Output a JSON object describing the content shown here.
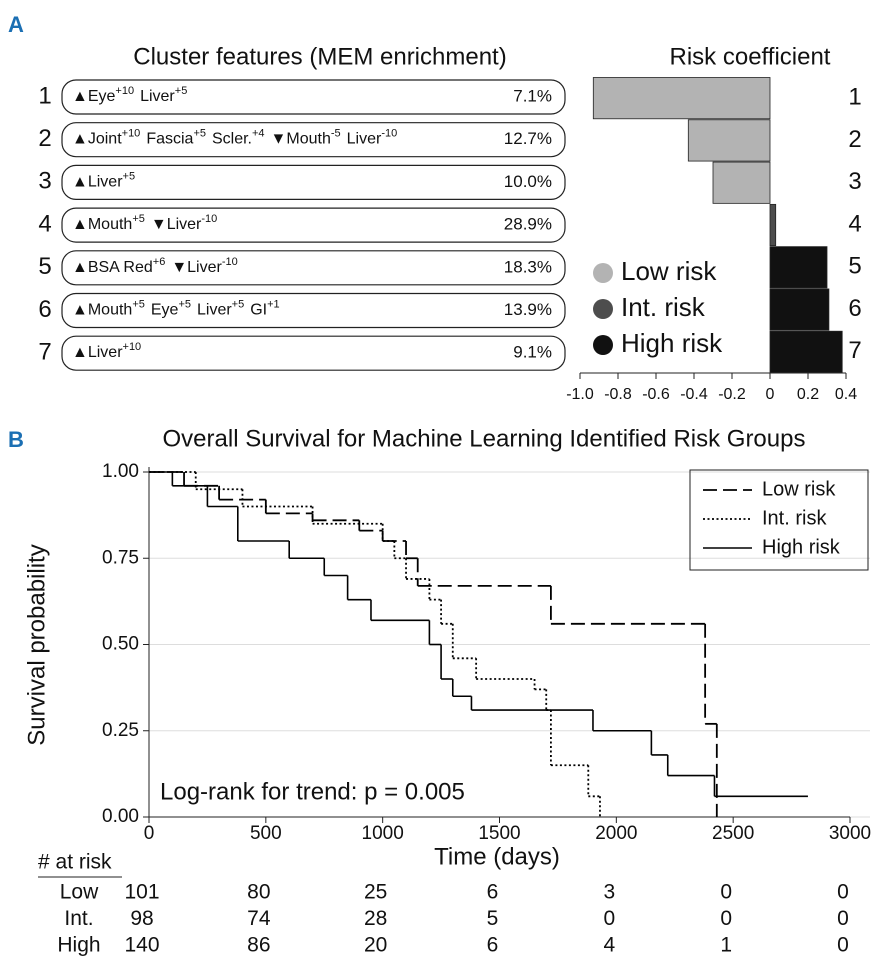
{
  "panels": {
    "a": "A",
    "b": "B"
  },
  "cluster_table": {
    "title": "Cluster features (MEM enrichment)",
    "rows": [
      {
        "number": "1",
        "features": [
          {
            "text": "▲Eye",
            "sup": "+10"
          },
          {
            "text": "Liver",
            "sup": "+5"
          }
        ],
        "percent": "7.1%"
      },
      {
        "number": "2",
        "features": [
          {
            "text": "▲Joint",
            "sup": "+10"
          },
          {
            "text": "Fascia",
            "sup": "+5"
          },
          {
            "text": "Scler.",
            "sup": "+4"
          },
          {
            "text": "▼Mouth",
            "sup": "-5"
          },
          {
            "text": "Liver",
            "sup": "-10"
          }
        ],
        "percent": "12.7%"
      },
      {
        "number": "3",
        "features": [
          {
            "text": "▲Liver",
            "sup": "+5"
          }
        ],
        "percent": "10.0%"
      },
      {
        "number": "4",
        "features": [
          {
            "text": "▲Mouth",
            "sup": "+5"
          },
          {
            "text": "▼Liver",
            "sup": "-10"
          }
        ],
        "percent": "28.9%"
      },
      {
        "number": "5",
        "features": [
          {
            "text": "▲BSA Red",
            "sup": "+6"
          },
          {
            "text": "▼Liver",
            "sup": "-10"
          }
        ],
        "percent": "18.3%"
      },
      {
        "number": "6",
        "features": [
          {
            "text": "▲Mouth",
            "sup": "+5"
          },
          {
            "text": "Eye",
            "sup": "+5"
          },
          {
            "text": "Liver",
            "sup": "+5"
          },
          {
            "text": "GI",
            "sup": "+1"
          }
        ],
        "percent": "13.9%"
      },
      {
        "number": "7",
        "features": [
          {
            "text": "▲Liver",
            "sup": "+10"
          }
        ],
        "percent": "9.1%"
      }
    ]
  },
  "chart_data": [
    {
      "type": "bar",
      "orientation": "horizontal",
      "title": "Risk coefficient",
      "categories": [
        "1",
        "2",
        "3",
        "4",
        "5",
        "6",
        "7"
      ],
      "values": [
        -0.93,
        -0.43,
        -0.3,
        0.03,
        0.3,
        0.31,
        0.38
      ],
      "colors": [
        "#b3b3b3",
        "#b3b3b3",
        "#b3b3b3",
        "#4d4d4d",
        "#111111",
        "#111111",
        "#111111"
      ],
      "xlim": [
        -1,
        0.4
      ],
      "xticks": [
        {
          "value": -1,
          "label": "-1.0"
        },
        -0.8,
        -0.6,
        -0.4,
        -0.2,
        0,
        0.2,
        0.4
      ],
      "legend": {
        "position": "lower left",
        "items": [
          {
            "name": "Low risk",
            "color": "#b3b3b3"
          },
          {
            "name": "Int. risk",
            "color": "#4d4d4d"
          },
          {
            "name": "High risk",
            "color": "#111111"
          }
        ]
      }
    },
    {
      "type": "line",
      "step": true,
      "title": "Overall Survival for Machine Learning Identified Risk Groups",
      "x_label": "Time (days)",
      "y_label": "Survival probability",
      "annotation": "Log-rank for trend: p = 0.005",
      "xlim": [
        0,
        3000
      ],
      "xticks": [
        0,
        500,
        1000,
        1500,
        2000,
        2500,
        3000
      ],
      "ylim": [
        0,
        1
      ],
      "yticks": [
        {
          "value": 0,
          "label": "0.00"
        },
        0.25,
        {
          "value": 0.5,
          "label": "0.50"
        },
        0.75,
        {
          "value": 1,
          "label": "1.00"
        }
      ],
      "grid": true,
      "legend": "upper right",
      "series": [
        {
          "name": "Low risk",
          "color": "#000000",
          "style": "dashed",
          "x": [
            0,
            150,
            300,
            500,
            700,
            900,
            1000,
            1100,
            1150,
            1720,
            2380,
            2430
          ],
          "values": [
            1.0,
            0.96,
            0.92,
            0.88,
            0.86,
            0.83,
            0.8,
            0.75,
            0.67,
            0.56,
            0.27,
            0
          ]
        },
        {
          "name": "Int. risk",
          "color": "#000000",
          "style": "dotted",
          "x": [
            0,
            200,
            400,
            700,
            1000,
            1050,
            1100,
            1200,
            1250,
            1300,
            1400,
            1650,
            1700,
            1720,
            1880,
            1930
          ],
          "values": [
            1.0,
            0.95,
            0.9,
            0.85,
            0.8,
            0.75,
            0.69,
            0.63,
            0.56,
            0.46,
            0.4,
            0.37,
            0.31,
            0.15,
            0.06,
            0
          ]
        },
        {
          "name": "High risk",
          "color": "#000000",
          "style": "solid",
          "x": [
            0,
            100,
            250,
            380,
            600,
            750,
            850,
            950,
            1200,
            1250,
            1300,
            1380,
            1900,
            2150,
            2220,
            2420,
            2820
          ],
          "values": [
            1.0,
            0.96,
            0.9,
            0.8,
            0.75,
            0.7,
            0.63,
            0.57,
            0.5,
            0.4,
            0.35,
            0.31,
            0.25,
            0.18,
            0.12,
            0.06,
            0.06
          ]
        }
      ]
    }
  ],
  "risk_table": {
    "title": "# at risk",
    "rows": [
      {
        "name": "Low",
        "counts": [
          101,
          80,
          25,
          6,
          3,
          0,
          0
        ]
      },
      {
        "name": "Int.",
        "counts": [
          98,
          74,
          28,
          5,
          0,
          0,
          0
        ]
      },
      {
        "name": "High",
        "counts": [
          140,
          86,
          20,
          6,
          4,
          1,
          0
        ]
      }
    ]
  }
}
